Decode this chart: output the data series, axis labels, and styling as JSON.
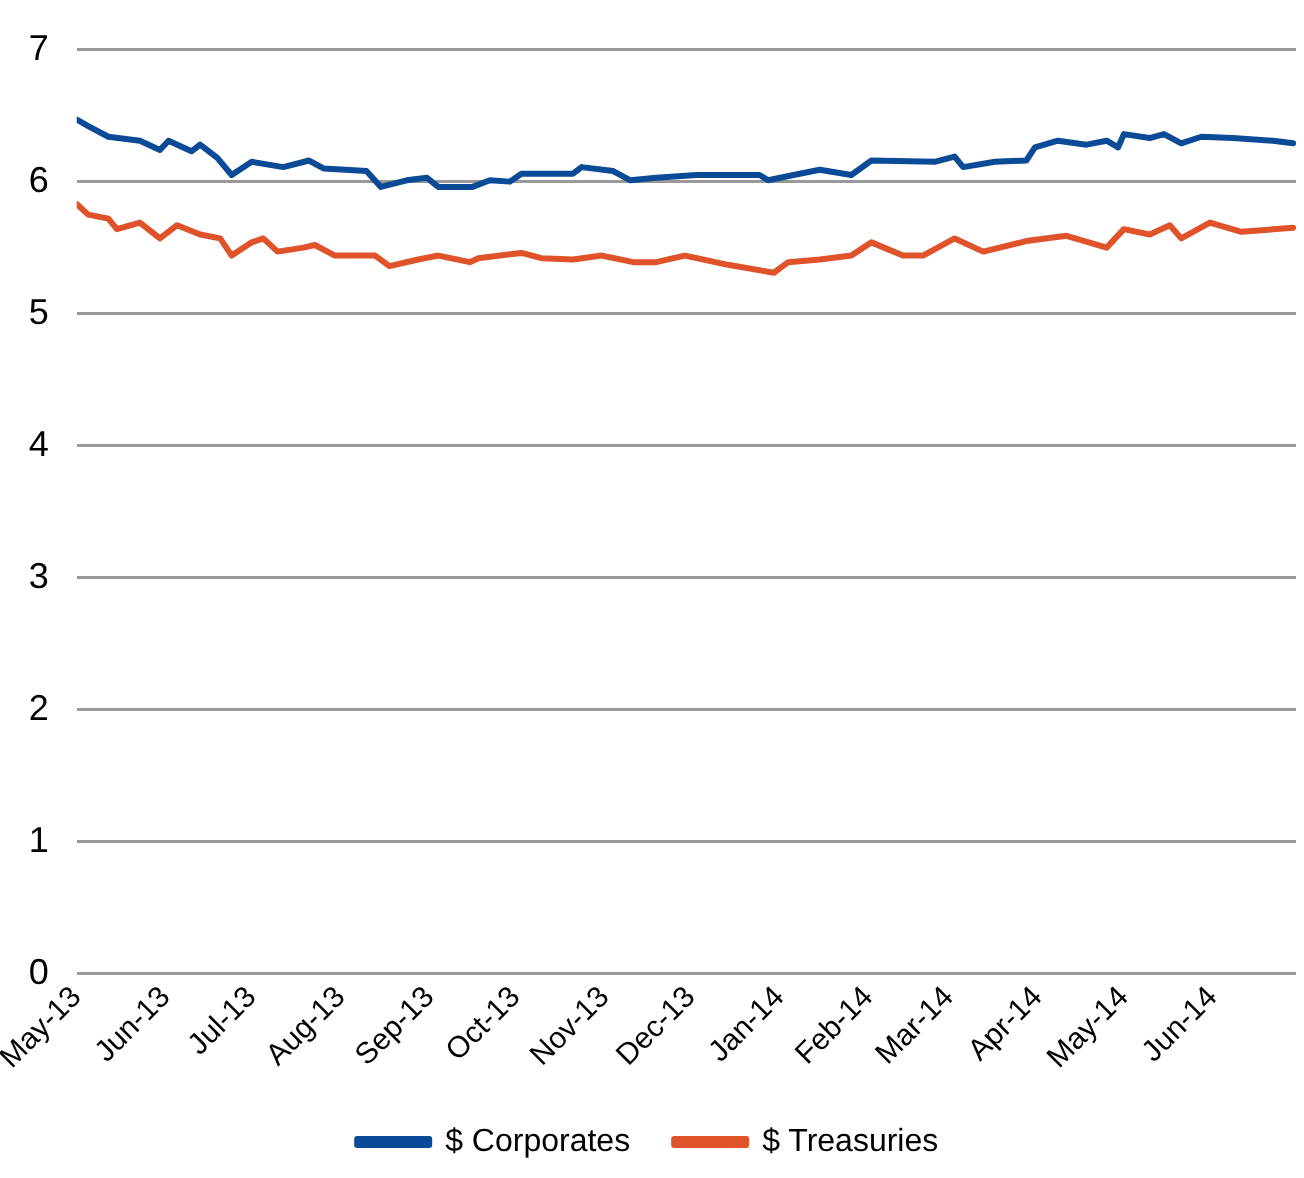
{
  "chart_data": {
    "type": "line",
    "xlim": [
      "2013-05-01",
      "2014-06-30"
    ],
    "xticks": [
      {
        "value": "2013-05-01",
        "label": "May-13"
      },
      {
        "value": "2013-06-01",
        "label": "Jun-13"
      },
      {
        "value": "2013-07-01",
        "label": "Jul-13"
      },
      {
        "value": "2013-08-01",
        "label": "Aug-13"
      },
      {
        "value": "2013-09-01",
        "label": "Sep-13"
      },
      {
        "value": "2013-10-01",
        "label": "Oct-13"
      },
      {
        "value": "2013-11-01",
        "label": "Nov-13"
      },
      {
        "value": "2013-12-01",
        "label": "Dec-13"
      },
      {
        "value": "2014-01-01",
        "label": "Jan-14"
      },
      {
        "value": "2014-02-01",
        "label": "Feb-14"
      },
      {
        "value": "2014-03-01",
        "label": "Mar-14"
      },
      {
        "value": "2014-04-01",
        "label": "Apr-14"
      },
      {
        "value": "2014-05-01",
        "label": "May-14"
      },
      {
        "value": "2014-06-01",
        "label": "Jun-14"
      }
    ],
    "ylim": [
      0,
      7
    ],
    "yticks": [
      0,
      1,
      2,
      3,
      4,
      5,
      6,
      7
    ],
    "grid": "y",
    "legend": "bottom",
    "marker": "none",
    "line_style": "solid",
    "series": [
      {
        "name": "$ Corporates",
        "color": "#0a4a96",
        "x": [
          "2013-05-01",
          "2013-05-05",
          "2013-05-12",
          "2013-05-23",
          "2013-05-30",
          "2013-06-02",
          "2013-06-10",
          "2013-06-13",
          "2013-06-19",
          "2013-06-24",
          "2013-07-01",
          "2013-07-12",
          "2013-07-21",
          "2013-07-26",
          "2013-08-10",
          "2013-08-15",
          "2013-08-24",
          "2013-08-31",
          "2013-09-04",
          "2013-09-16",
          "2013-09-22",
          "2013-09-29",
          "2013-10-03",
          "2013-10-21",
          "2013-10-24",
          "2013-11-04",
          "2013-11-10",
          "2013-11-19",
          "2013-12-03",
          "2013-12-25",
          "2013-12-28",
          "2014-01-08",
          "2014-01-15",
          "2014-01-26",
          "2014-02-02",
          "2014-02-24",
          "2014-03-03",
          "2014-03-06",
          "2014-03-17",
          "2014-03-28",
          "2014-03-31",
          "2014-04-08",
          "2014-04-18",
          "2014-04-25",
          "2014-04-29",
          "2014-05-01",
          "2014-05-10",
          "2014-05-15",
          "2014-05-21",
          "2014-05-28",
          "2014-06-08",
          "2014-06-22",
          "2014-06-29"
        ],
        "values": [
          6.47,
          6.42,
          6.34,
          6.31,
          6.24,
          6.31,
          6.23,
          6.28,
          6.18,
          6.05,
          6.15,
          6.11,
          6.16,
          6.1,
          6.08,
          5.96,
          6.01,
          6.03,
          5.96,
          5.96,
          6.01,
          6.0,
          6.06,
          6.06,
          6.11,
          6.08,
          6.01,
          6.03,
          6.05,
          6.05,
          6.01,
          6.06,
          6.09,
          6.05,
          6.16,
          6.15,
          6.19,
          6.11,
          6.15,
          6.16,
          6.26,
          6.31,
          6.28,
          6.31,
          6.26,
          6.36,
          6.33,
          6.36,
          6.29,
          6.34,
          6.33,
          6.31,
          6.29
        ]
      },
      {
        "name": "$ Treasuries",
        "color": "#e0522a",
        "x": [
          "2013-05-01",
          "2013-05-05",
          "2013-05-12",
          "2013-05-15",
          "2013-05-23",
          "2013-05-30",
          "2013-06-05",
          "2013-06-13",
          "2013-06-20",
          "2013-06-24",
          "2013-07-01",
          "2013-07-05",
          "2013-07-10",
          "2013-07-19",
          "2013-07-23",
          "2013-07-30",
          "2013-08-13",
          "2013-08-18",
          "2013-08-28",
          "2013-09-04",
          "2013-09-15",
          "2013-09-18",
          "2013-10-03",
          "2013-10-10",
          "2013-10-21",
          "2013-10-31",
          "2013-11-11",
          "2013-11-19",
          "2013-11-29",
          "2013-12-14",
          "2013-12-30",
          "2014-01-04",
          "2014-01-15",
          "2014-01-26",
          "2014-02-02",
          "2014-02-13",
          "2014-02-20",
          "2014-03-03",
          "2014-03-13",
          "2014-03-28",
          "2014-04-11",
          "2014-04-25",
          "2014-05-01",
          "2014-05-10",
          "2014-05-17",
          "2014-05-21",
          "2014-05-31",
          "2014-06-11",
          "2014-06-29"
        ],
        "values": [
          5.83,
          5.75,
          5.72,
          5.64,
          5.69,
          5.57,
          5.67,
          5.6,
          5.57,
          5.44,
          5.54,
          5.57,
          5.47,
          5.5,
          5.52,
          5.44,
          5.44,
          5.36,
          5.41,
          5.44,
          5.39,
          5.42,
          5.46,
          5.42,
          5.41,
          5.44,
          5.39,
          5.39,
          5.44,
          5.37,
          5.31,
          5.39,
          5.41,
          5.44,
          5.54,
          5.44,
          5.44,
          5.57,
          5.47,
          5.55,
          5.59,
          5.5,
          5.64,
          5.6,
          5.67,
          5.57,
          5.69,
          5.62,
          5.65
        ]
      }
    ]
  }
}
